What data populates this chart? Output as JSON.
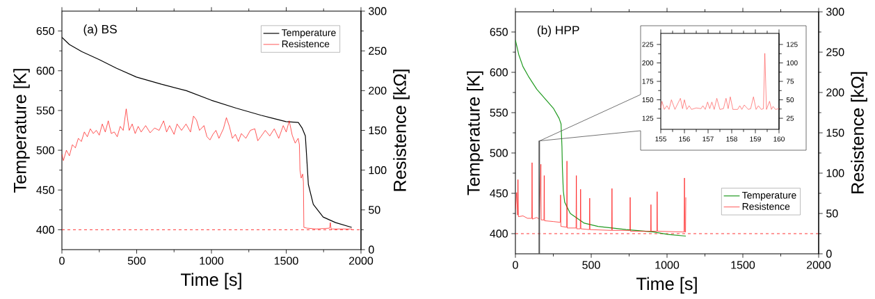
{
  "chart_data": [
    {
      "type": "line",
      "title": "(a) BS",
      "xlabel": "Time [s]",
      "ylabel": "Temperature [K]",
      "y2label": "Resistence [kΩ]",
      "xlim": [
        0,
        2000
      ],
      "xticks": [
        0,
        500,
        1000,
        1500,
        2000
      ],
      "ylim": [
        375,
        675
      ],
      "yticks": [
        400,
        450,
        500,
        550,
        600,
        650
      ],
      "y2lim": [
        0,
        300
      ],
      "y2ticks": [
        0,
        50,
        100,
        150,
        200,
        250,
        300
      ],
      "legend": "top right",
      "ref_lines": [
        {
          "axis": "y",
          "value": 400,
          "color": "#ff0000",
          "line_style": "dashed"
        }
      ],
      "series": [
        {
          "name": "Temperature",
          "color": "#000000",
          "x": [
            0,
            50,
            133,
            250,
            366,
            499,
            666,
            832,
            998,
            1165,
            1331,
            1415,
            1498,
            1581,
            1606,
            1628,
            1636,
            1648,
            1681,
            1747,
            1830,
            1938
          ],
          "values": [
            642,
            633,
            624,
            614,
            603,
            592,
            583,
            575,
            563,
            553,
            544,
            540,
            536,
            535,
            528,
            518,
            494,
            457,
            432,
            416,
            409,
            403
          ]
        },
        {
          "name": "Resistence",
          "color": "#ff0000",
          "axis": "y2",
          "x": [
            0,
            10,
            30,
            50,
            70,
            90,
            110,
            130,
            150,
            170,
            190,
            210,
            230,
            250,
            270,
            290,
            310,
            330,
            350,
            370,
            390,
            410,
            430,
            450,
            470,
            490,
            510,
            530,
            560,
            590,
            620,
            650,
            680,
            700,
            720,
            750,
            770,
            800,
            830,
            860,
            880,
            900,
            920,
            950,
            970,
            990,
            1010,
            1030,
            1050,
            1080,
            1100,
            1120,
            1140,
            1160,
            1180,
            1200,
            1230,
            1260,
            1290,
            1310,
            1330,
            1360,
            1390,
            1420,
            1450,
            1480,
            1500,
            1520,
            1540,
            1560,
            1580,
            1588,
            1592,
            1600,
            1610,
            1615,
            1618,
            1640,
            1700,
            1790,
            1795,
            1800,
            1900,
            1940
          ],
          "values": [
            120,
            112,
            125,
            118,
            132,
            128,
            140,
            136,
            148,
            142,
            152,
            146,
            150,
            144,
            158,
            148,
            162,
            146,
            148,
            142,
            155,
            150,
            177,
            150,
            158,
            146,
            155,
            148,
            156,
            147,
            153,
            150,
            162,
            148,
            156,
            145,
            158,
            150,
            158,
            148,
            168,
            163,
            150,
            156,
            142,
            138,
            145,
            150,
            140,
            152,
            166,
            155,
            140,
            145,
            136,
            146,
            140,
            150,
            152,
            137,
            142,
            150,
            143,
            152,
            140,
            156,
            148,
            162,
            144,
            134,
            140,
            132,
            100,
            90,
            95,
            85,
            28,
            27,
            26,
            27,
            34,
            26,
            26,
            26
          ]
        }
      ]
    },
    {
      "type": "line",
      "title": "(b) HPP",
      "xlabel": "Time [s]",
      "ylabel": "Temperature [K]",
      "y2label": "Resistence [kΩ]",
      "xlim": [
        0,
        2000
      ],
      "xticks": [
        0,
        500,
        1000,
        1500,
        2000
      ],
      "ylim": [
        375,
        675
      ],
      "yticks": [
        400,
        450,
        500,
        550,
        600,
        650
      ],
      "y2lim": [
        0,
        300
      ],
      "y2ticks": [
        0,
        50,
        100,
        150,
        200,
        250,
        300
      ],
      "legend": "bottom right",
      "bands": [
        {
          "axis": "x",
          "from": 155,
          "to": 160,
          "color": "#4c4c4c"
        }
      ],
      "ref_lines": [
        {
          "axis": "y",
          "value": 400,
          "color": "#ff0000",
          "line_style": "dashed"
        }
      ],
      "series": [
        {
          "name": "Temperature",
          "color": "#1f9a1f",
          "x": [
            0,
            22,
            50,
            86,
            141,
            197,
            252,
            288,
            301,
            307,
            310,
            316,
            325,
            362,
            454,
            545,
            729,
            913,
            1005,
            1124
          ],
          "values": [
            640,
            622,
            607,
            595,
            579,
            567,
            555,
            543,
            536,
            508,
            481,
            453,
            439,
            425,
            413,
            409,
            405,
            402,
            399,
            397
          ]
        },
        {
          "name": "Resistence",
          "color": "#ff0000",
          "axis": "y2",
          "x": [
            0,
            8,
            14,
            17,
            20,
            50,
            80,
            108,
            110,
            112,
            140,
            158,
            168,
            170,
            188,
            190,
            192,
            250,
            296,
            298,
            300,
            338,
            340,
            342,
            400,
            402,
            404,
            428,
            430,
            432,
            488,
            490,
            492,
            635,
            637,
            639,
            755,
            757,
            759,
            892,
            894,
            896,
            933,
            935,
            937,
            1112,
            1115,
            1118,
            1122,
            1124
          ],
          "values": [
            55,
            76,
            48,
            92,
            46,
            47,
            44,
            44,
            113,
            43,
            45,
            43,
            111,
            42,
            42,
            97,
            41,
            40,
            39,
            73,
            34,
            33,
            115,
            32,
            32,
            97,
            31,
            31,
            80,
            31,
            30,
            69,
            30,
            29,
            81,
            29,
            29,
            70,
            28,
            28,
            61,
            28,
            28,
            77,
            28,
            27,
            94,
            27,
            27,
            70
          ]
        }
      ]
    },
    {
      "type": "line",
      "xlim": [
        155,
        160
      ],
      "xticks": [
        155,
        156,
        157,
        158,
        159,
        160
      ],
      "ylim": [
        110,
        240
      ],
      "yticks": [
        125,
        150,
        175,
        200,
        225
      ],
      "y2lim": [
        10,
        140
      ],
      "y2ticks": [
        25,
        50,
        75,
        100,
        125
      ],
      "series": [
        {
          "color": "#ff5050",
          "axis": "y2",
          "x": [
            155,
            155.05,
            155.15,
            155.26,
            155.35,
            155.45,
            155.6,
            155.83,
            155.92,
            156.0,
            156.1,
            156.2,
            156.3,
            156.5,
            156.7,
            156.78,
            156.88,
            156.98,
            157.07,
            157.16,
            157.26,
            157.37,
            157.5,
            157.65,
            157.76,
            157.85,
            157.94,
            158.05,
            158.25,
            158.34,
            158.43,
            158.53,
            158.7,
            158.8,
            158.92,
            159.03,
            159.13,
            159.25,
            159.34,
            159.4,
            159.47,
            159.6,
            159.68,
            159.75,
            159.85,
            160
          ],
          "values": [
            38,
            48,
            37,
            42,
            37,
            50,
            37,
            52,
            38,
            50,
            37,
            42,
            37,
            39,
            38,
            42,
            37,
            47,
            38,
            47,
            37,
            52,
            37,
            38,
            52,
            38,
            54,
            37,
            37,
            42,
            37,
            43,
            37,
            38,
            54,
            37,
            42,
            37,
            38,
            113,
            37,
            48,
            37,
            41,
            37,
            38
          ]
        }
      ]
    }
  ]
}
